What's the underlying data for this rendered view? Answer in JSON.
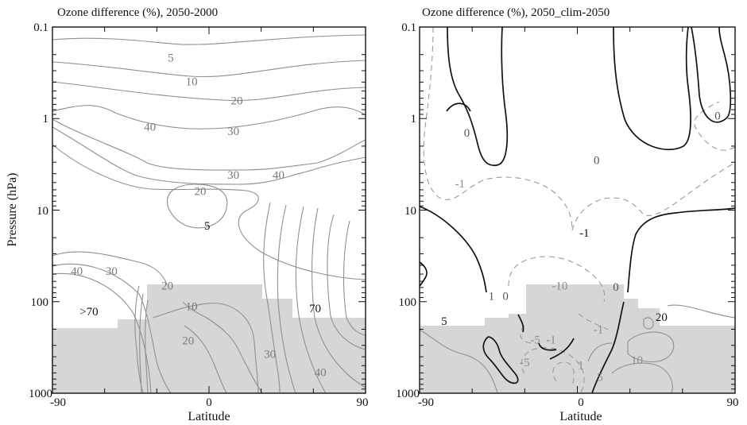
{
  "chart_data": [
    {
      "type": "contour",
      "title": "Ozone difference (%), 2050-2000",
      "xlabel": "Latitude",
      "ylabel": "Pressure (hPa)",
      "xlim": [
        -90,
        90
      ],
      "ylim": [
        0.1,
        1000
      ],
      "yscale": "log",
      "y_inverted": true,
      "xticks": [
        "-90",
        "0",
        "90"
      ],
      "yticks": [
        "0.1",
        "1",
        "10",
        "100",
        "1000"
      ],
      "grid": false,
      "shading": "gray fill below tropopause",
      "contour_color": "#8a8a8a",
      "labels": [
        {
          "text": "5",
          "x": -22,
          "y": 0.22,
          "color": "#7a7a7a"
        },
        {
          "text": "10",
          "x": -10,
          "y": 0.4,
          "color": "#7a7a7a"
        },
        {
          "text": "20",
          "x": 16,
          "y": 0.65,
          "color": "#7a7a7a"
        },
        {
          "text": "30",
          "x": 14,
          "y": 1.4,
          "color": "#7a7a7a"
        },
        {
          "text": "40",
          "x": -34,
          "y": 1.25,
          "color": "#7a7a7a"
        },
        {
          "text": "30",
          "x": 14,
          "y": 4.2,
          "color": "#7a7a7a"
        },
        {
          "text": "40",
          "x": 40,
          "y": 4.2,
          "color": "#7a7a7a"
        },
        {
          "text": "20",
          "x": -5,
          "y": 6.3,
          "color": "#7a7a7a"
        },
        {
          "text": "5",
          "x": -1,
          "y": 15,
          "color": "#111111"
        },
        {
          "text": "40",
          "x": -76,
          "y": 47,
          "color": "#7a7a7a"
        },
        {
          "text": "30",
          "x": -56,
          "y": 47,
          "color": "#7a7a7a"
        },
        {
          "text": "20",
          "x": -24,
          "y": 68,
          "color": "#7a7a7a"
        },
        {
          "text": ">70",
          "x": -69,
          "y": 130,
          "color": "#111111"
        },
        {
          "text": "10",
          "x": -10,
          "y": 115,
          "color": "#7a7a7a"
        },
        {
          "text": "70",
          "x": 61,
          "y": 120,
          "color": "#111111"
        },
        {
          "text": "20",
          "x": -12,
          "y": 270,
          "color": "#7a7a7a"
        },
        {
          "text": "30",
          "x": 35,
          "y": 380,
          "color": "#7a7a7a"
        },
        {
          "text": "40",
          "x": 64,
          "y": 600,
          "color": "#7a7a7a"
        }
      ]
    },
    {
      "type": "contour",
      "title": "Ozone difference (%), 2050_clim-2050",
      "xlabel": "Latitude",
      "ylabel": "",
      "xlim": [
        -90,
        90
      ],
      "ylim": [
        0.1,
        1000
      ],
      "yscale": "log",
      "y_inverted": true,
      "xticks": [
        "-90",
        "0",
        "90"
      ],
      "yticks": [
        "0.1",
        "1",
        "10",
        "100",
        "1000"
      ],
      "grid": false,
      "shading": "gray fill below tropopause",
      "line_styles": {
        "zero": "solid black",
        "negative": "dashed gray",
        "positive": "solid gray"
      },
      "labels": [
        {
          "text": "0",
          "x": -63,
          "y": 1.45,
          "color": "#555555"
        },
        {
          "text": "0",
          "x": 80,
          "y": 0.95,
          "color": "#555555"
        },
        {
          "text": "0",
          "x": 11,
          "y": 2.9,
          "color": "#555555"
        },
        {
          "text": "-1",
          "x": -67,
          "y": 5.2,
          "color": "#8a8a8a"
        },
        {
          "text": "-1",
          "x": 4,
          "y": 18,
          "color": "#111111"
        },
        {
          "text": "-10",
          "x": -10,
          "y": 68,
          "color": "#8a8a8a"
        },
        {
          "text": "1",
          "x": -49,
          "y": 88,
          "color": "#555555"
        },
        {
          "text": "0",
          "x": -41,
          "y": 88,
          "color": "#555555"
        },
        {
          "text": "0",
          "x": 22,
          "y": 70,
          "color": "#555555"
        },
        {
          "text": "5",
          "x": -76,
          "y": 165,
          "color": "#111111"
        },
        {
          "text": "20",
          "x": 48,
          "y": 150,
          "color": "#111111"
        },
        {
          "text": "-1",
          "x": 12,
          "y": 205,
          "color": "#8a8a8a"
        },
        {
          "text": "-5",
          "x": -24,
          "y": 265,
          "color": "#8a8a8a"
        },
        {
          "text": "-1",
          "x": -15,
          "y": 265,
          "color": "#8a8a8a"
        },
        {
          "text": "10",
          "x": 34,
          "y": 440,
          "color": "#8a8a8a"
        },
        {
          "text": "-5",
          "x": -30,
          "y": 470,
          "color": "#8a8a8a"
        },
        {
          "text": "1",
          "x": 2,
          "y": 500,
          "color": "#8a8a8a"
        },
        {
          "text": "5",
          "x": 13,
          "y": 680,
          "color": "#8a8a8a"
        }
      ]
    }
  ]
}
